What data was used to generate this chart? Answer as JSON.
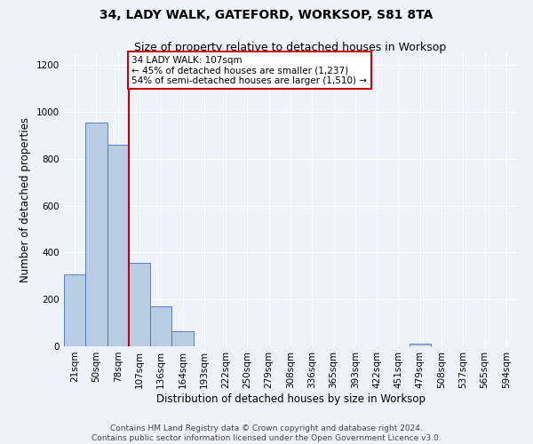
{
  "title": "34, LADY WALK, GATEFORD, WORKSOP, S81 8TA",
  "subtitle": "Size of property relative to detached houses in Worksop",
  "xlabel": "Distribution of detached houses by size in Worksop",
  "ylabel": "Number of detached properties",
  "footer": "Contains HM Land Registry data © Crown copyright and database right 2024.\nContains public sector information licensed under the Open Government Licence v3.0.",
  "bin_labels": [
    "21sqm",
    "50sqm",
    "78sqm",
    "107sqm",
    "136sqm",
    "164sqm",
    "193sqm",
    "222sqm",
    "250sqm",
    "279sqm",
    "308sqm",
    "336sqm",
    "365sqm",
    "393sqm",
    "422sqm",
    "451sqm",
    "479sqm",
    "508sqm",
    "537sqm",
    "565sqm",
    "594sqm"
  ],
  "bar_values": [
    305,
    955,
    860,
    355,
    170,
    65,
    0,
    0,
    0,
    0,
    0,
    0,
    0,
    0,
    0,
    0,
    10,
    0,
    0,
    0,
    0
  ],
  "bar_color": "#b8cce4",
  "bar_edge_color": "#4472c4",
  "red_line_bin_index": 3,
  "annotation_text": "34 LADY WALK: 107sqm\n← 45% of detached houses are smaller (1,237)\n54% of semi-detached houses are larger (1,510) →",
  "annotation_box_color": "#ffffff",
  "annotation_box_edge": "#cc0000",
  "ylim": [
    0,
    1250
  ],
  "yticks": [
    0,
    200,
    400,
    600,
    800,
    1000,
    1200
  ],
  "background_color": "#eef2f9",
  "grid_color": "#ffffff",
  "title_fontsize": 10,
  "subtitle_fontsize": 9,
  "axis_label_fontsize": 8.5,
  "tick_fontsize": 7.5,
  "footer_fontsize": 6.5
}
